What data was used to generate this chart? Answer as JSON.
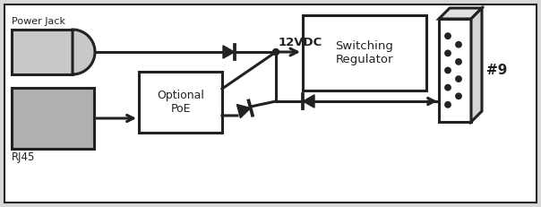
{
  "bg_color": "#d8d8d8",
  "inner_bg": "#ffffff",
  "line_color": "#222222",
  "gray_light": "#c8c8c8",
  "gray_dark": "#b0b0b0",
  "label_powerjack": "Power Jack",
  "label_rj45": "RJ45",
  "label_poe": "Optional\nPoE",
  "label_sr": "Switching\nRegulator",
  "label_vdc": "12VDC",
  "label_connector": "#9",
  "lw": 2.2,
  "fig_w": 6.04,
  "fig_h": 2.31,
  "dpi": 100
}
